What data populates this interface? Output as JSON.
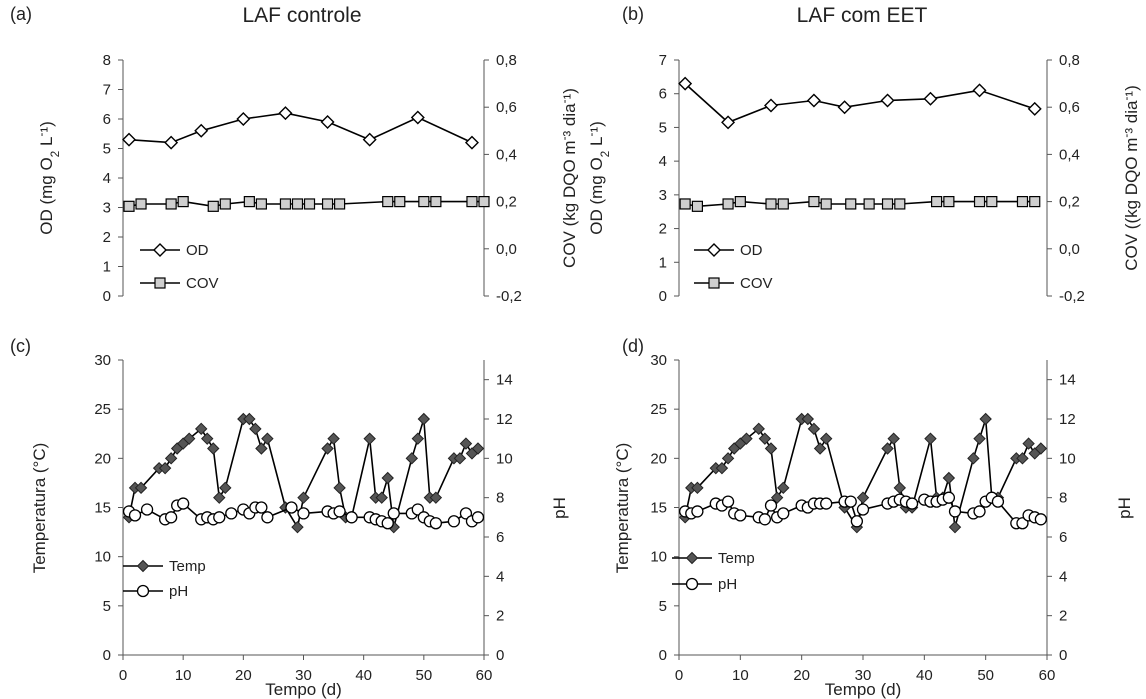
{
  "chart_data": [
    {
      "panel": "(a)",
      "type": "line",
      "title": "LAF controle",
      "ylabel": "OD (mg O₂ L⁻¹)",
      "y2label": "COV (kg DQO m⁻³ dia⁻¹)",
      "ylim": [
        0,
        8
      ],
      "y2lim": [
        -0.2,
        0.8
      ],
      "y_ticks": [
        "0",
        "1",
        "2",
        "3",
        "4",
        "5",
        "6",
        "7",
        "8"
      ],
      "y2_ticks": [
        "-0,2",
        "0,0",
        "0,2",
        "0,4",
        "0,6",
        "0,8"
      ],
      "xlim": [
        0,
        60
      ],
      "legend_position": "bottom-left",
      "series": [
        {
          "name": "OD",
          "axis": "left",
          "marker": "diamond",
          "x": [
            1,
            8,
            13,
            20,
            27,
            34,
            41,
            49,
            58
          ],
          "y": [
            5.3,
            5.2,
            5.6,
            6.0,
            6.2,
            5.9,
            5.3,
            6.05,
            5.2
          ]
        },
        {
          "name": "COV",
          "axis": "right",
          "marker": "square",
          "x": [
            1,
            3,
            8,
            10,
            15,
            17,
            21,
            23,
            27,
            29,
            31,
            34,
            36,
            44,
            46,
            50,
            52,
            58,
            60
          ],
          "y": [
            0.18,
            0.19,
            0.19,
            0.2,
            0.18,
            0.19,
            0.2,
            0.19,
            0.19,
            0.19,
            0.19,
            0.19,
            0.19,
            0.2,
            0.2,
            0.2,
            0.2,
            0.2,
            0.2
          ]
        }
      ]
    },
    {
      "panel": "(b)",
      "type": "line",
      "title": "LAF com EET",
      "ylabel": "OD (mg O₂ L⁻¹)",
      "y2label": "COV ((kg DQO m⁻³ dia⁻¹)",
      "ylim": [
        0,
        7
      ],
      "y2lim": [
        -0.2,
        0.8
      ],
      "y_ticks": [
        "0",
        "1",
        "2",
        "3",
        "4",
        "5",
        "6",
        "7"
      ],
      "y2_ticks": [
        "-0,2",
        "0,0",
        "0,2",
        "0,4",
        "0,6",
        "0,8"
      ],
      "xlim": [
        0,
        60
      ],
      "legend_position": "bottom-left",
      "series": [
        {
          "name": "OD",
          "axis": "left",
          "marker": "diamond",
          "x": [
            1,
            8,
            15,
            22,
            27,
            34,
            41,
            49,
            58
          ],
          "y": [
            6.3,
            5.15,
            5.65,
            5.8,
            5.6,
            5.8,
            5.85,
            6.1,
            5.55
          ]
        },
        {
          "name": "COV",
          "axis": "right",
          "marker": "square",
          "x": [
            1,
            3,
            8,
            10,
            15,
            17,
            22,
            24,
            28,
            31,
            34,
            36,
            42,
            44,
            49,
            51,
            56,
            58
          ],
          "y": [
            0.19,
            0.18,
            0.19,
            0.2,
            0.19,
            0.19,
            0.2,
            0.19,
            0.19,
            0.19,
            0.19,
            0.19,
            0.2,
            0.2,
            0.2,
            0.2,
            0.2,
            0.2
          ]
        }
      ]
    },
    {
      "panel": "(c)",
      "type": "line",
      "xlabel": "Tempo (d)",
      "ylabel": "Temperatura (°C)",
      "y2label": "pH",
      "ylim": [
        0,
        30
      ],
      "y2lim": [
        0,
        15
      ],
      "y_ticks": [
        "0",
        "5",
        "10",
        "15",
        "20",
        "25",
        "30"
      ],
      "y2_ticks": [
        "0",
        "2",
        "4",
        "6",
        "8",
        "10",
        "12",
        "14"
      ],
      "x_ticks": [
        "0",
        "10",
        "20",
        "30",
        "40",
        "50",
        "60"
      ],
      "xlim": [
        0,
        60
      ],
      "legend_position": "bottom-left",
      "series": [
        {
          "name": "Temp",
          "axis": "left",
          "marker": "filled-diamond",
          "x": [
            1,
            2,
            3,
            6,
            7,
            8,
            9,
            10,
            11,
            13,
            14,
            15,
            16,
            17,
            20,
            21,
            22,
            23,
            24,
            27,
            29,
            30,
            34,
            35,
            36,
            37,
            38,
            41,
            42,
            43,
            44,
            45,
            48,
            49,
            50,
            51,
            52,
            55,
            56,
            57,
            58,
            59
          ],
          "y": [
            14,
            17,
            17,
            19,
            19,
            20,
            21,
            21.5,
            22,
            23,
            22,
            21,
            16,
            17,
            24,
            24,
            23,
            21,
            22,
            15,
            13,
            16,
            21,
            22,
            17,
            14,
            14,
            22,
            16,
            16,
            18,
            13,
            20,
            22,
            24,
            16,
            16,
            20,
            20,
            21.5,
            20.5,
            21
          ]
        },
        {
          "name": "pH",
          "axis": "right",
          "marker": "open-circle",
          "x": [
            1,
            2,
            4,
            7,
            8,
            9,
            10,
            13,
            14,
            15,
            16,
            18,
            20,
            21,
            22,
            23,
            24,
            28,
            30,
            34,
            35,
            36,
            38,
            41,
            42,
            43,
            44,
            45,
            48,
            49,
            50,
            51,
            52,
            55,
            57,
            58,
            59
          ],
          "y": [
            7.3,
            7.1,
            7.4,
            6.9,
            7.0,
            7.6,
            7.7,
            6.9,
            7.0,
            6.9,
            7.0,
            7.2,
            7.4,
            7.2,
            7.5,
            7.5,
            7.0,
            7.5,
            7.2,
            7.3,
            7.2,
            7.3,
            7.0,
            7.0,
            6.9,
            6.8,
            6.7,
            7.2,
            7.2,
            7.4,
            7.0,
            6.8,
            6.7,
            6.8,
            7.2,
            6.8,
            7.0
          ]
        }
      ]
    },
    {
      "panel": "(d)",
      "type": "line",
      "xlabel": "Tempo (d)",
      "ylabel": "Temperatura (°C)",
      "y2label": "pH",
      "ylim": [
        0,
        30
      ],
      "y2lim": [
        0,
        15
      ],
      "y_ticks": [
        "0",
        "5",
        "10",
        "15",
        "20",
        "25",
        "30"
      ],
      "y2_ticks": [
        "0",
        "2",
        "4",
        "6",
        "8",
        "10",
        "12",
        "14"
      ],
      "x_ticks": [
        "0",
        "10",
        "20",
        "30",
        "40",
        "50",
        "60"
      ],
      "xlim": [
        0,
        60
      ],
      "legend_position": "bottom-left",
      "series": [
        {
          "name": "Temp",
          "axis": "left",
          "marker": "filled-diamond",
          "x": [
            1,
            2,
            3,
            6,
            7,
            8,
            9,
            10,
            11,
            13,
            14,
            15,
            16,
            17,
            20,
            21,
            22,
            23,
            24,
            27,
            29,
            30,
            34,
            35,
            36,
            37,
            38,
            41,
            42,
            43,
            44,
            45,
            48,
            49,
            50,
            51,
            52,
            55,
            56,
            57,
            58,
            59
          ],
          "y": [
            14,
            17,
            17,
            19,
            19,
            20,
            21,
            21.5,
            22,
            23,
            22,
            21,
            16,
            17,
            24,
            24,
            23,
            21,
            22,
            15,
            13,
            16,
            21,
            22,
            17,
            15,
            15,
            22,
            16,
            16,
            18,
            13,
            20,
            22,
            24,
            16,
            16,
            20,
            20,
            21.5,
            20.5,
            21
          ]
        },
        {
          "name": "pH",
          "axis": "right",
          "marker": "open-circle",
          "x": [
            1,
            2,
            3,
            6,
            7,
            8,
            9,
            10,
            13,
            14,
            15,
            16,
            17,
            20,
            21,
            22,
            23,
            24,
            27,
            28,
            29,
            30,
            34,
            35,
            36,
            37,
            38,
            40,
            41,
            42,
            43,
            44,
            45,
            48,
            49,
            50,
            51,
            52,
            55,
            56,
            57,
            58,
            59
          ],
          "y": [
            7.3,
            7.2,
            7.3,
            7.7,
            7.6,
            7.8,
            7.2,
            7.1,
            7.0,
            6.9,
            7.6,
            7.0,
            7.2,
            7.6,
            7.5,
            7.7,
            7.7,
            7.7,
            7.8,
            7.8,
            6.8,
            7.4,
            7.7,
            7.8,
            7.9,
            7.8,
            7.7,
            7.9,
            7.8,
            7.8,
            7.9,
            8.0,
            7.3,
            7.2,
            7.3,
            7.8,
            8.0,
            7.8,
            6.7,
            6.7,
            7.1,
            7.0,
            6.9
          ]
        }
      ]
    }
  ]
}
